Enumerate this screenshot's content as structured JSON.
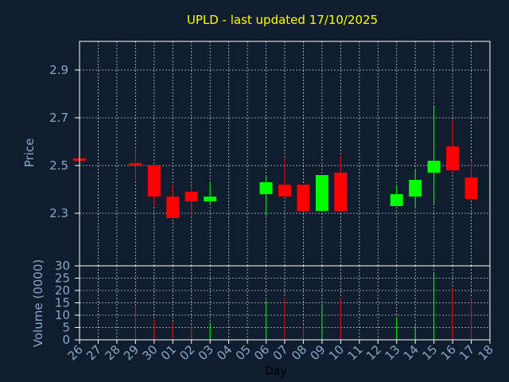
{
  "chart_data": {
    "type": "candlestick",
    "title": "UPLD - last updated 17/10/2025",
    "xlabel": "Day",
    "price_panel": {
      "ylabel": "Price",
      "ylim": [
        2.08,
        3.02
      ],
      "ticks": [
        "2.3",
        "2.5",
        "2.7",
        "2.9"
      ],
      "grid": true
    },
    "volume_panel": {
      "ylabel": "Volume (0000)",
      "ylim": [
        0,
        30
      ],
      "ticks": [
        "0",
        "5",
        "10",
        "15",
        "20",
        "25",
        "30"
      ],
      "grid": true
    },
    "x_ticks": [
      "26",
      "27",
      "28",
      "29",
      "30",
      "01",
      "02",
      "03",
      "04",
      "05",
      "06",
      "07",
      "08",
      "09",
      "10",
      "11",
      "12",
      "13",
      "14",
      "15",
      "16",
      "17",
      "18"
    ],
    "candles": [
      {
        "day": "26",
        "open": 2.53,
        "high": 2.53,
        "low": 2.52,
        "close": 2.52,
        "volume": 0
      },
      {
        "day": "29",
        "open": 2.51,
        "high": 2.57,
        "low": 2.44,
        "close": 2.5,
        "volume": 14
      },
      {
        "day": "30",
        "open": 2.5,
        "high": 2.5,
        "low": 2.33,
        "close": 2.37,
        "volume": 8
      },
      {
        "day": "01",
        "open": 2.37,
        "high": 2.42,
        "low": 2.28,
        "close": 2.28,
        "volume": 7
      },
      {
        "day": "02",
        "open": 2.39,
        "high": 2.41,
        "low": 2.29,
        "close": 2.35,
        "volume": 6
      },
      {
        "day": "03",
        "open": 2.35,
        "high": 2.43,
        "low": 2.34,
        "close": 2.37,
        "volume": 7
      },
      {
        "day": "06",
        "open": 2.38,
        "high": 2.46,
        "low": 2.29,
        "close": 2.43,
        "volume": 16
      },
      {
        "day": "07",
        "open": 2.42,
        "high": 2.53,
        "low": 2.37,
        "close": 2.37,
        "volume": 17
      },
      {
        "day": "08",
        "open": 2.42,
        "high": 2.42,
        "low": 2.31,
        "close": 2.31,
        "volume": 6
      },
      {
        "day": "09",
        "open": 2.31,
        "high": 2.46,
        "low": 2.31,
        "close": 2.46,
        "volume": 14
      },
      {
        "day": "10",
        "open": 2.47,
        "high": 2.54,
        "low": 2.31,
        "close": 2.31,
        "volume": 17
      },
      {
        "day": "13",
        "open": 2.33,
        "high": 2.42,
        "low": 2.33,
        "close": 2.38,
        "volume": 9
      },
      {
        "day": "14",
        "open": 2.37,
        "high": 2.48,
        "low": 2.32,
        "close": 2.44,
        "volume": 6
      },
      {
        "day": "15",
        "open": 2.47,
        "high": 2.75,
        "low": 2.34,
        "close": 2.52,
        "volume": 27
      },
      {
        "day": "16",
        "open": 2.58,
        "high": 2.69,
        "low": 2.47,
        "close": 2.48,
        "volume": 21
      },
      {
        "day": "17",
        "open": 2.45,
        "high": 2.52,
        "low": 2.36,
        "close": 2.36,
        "volume": 17
      }
    ],
    "colors": {
      "background": "#0f1d2e",
      "up": "#00ff00",
      "down": "#ff0000",
      "grid": "#ffffff",
      "frame": "#ffffff",
      "title": "#ffff00",
      "axis_text": "#8aa6c8"
    }
  }
}
